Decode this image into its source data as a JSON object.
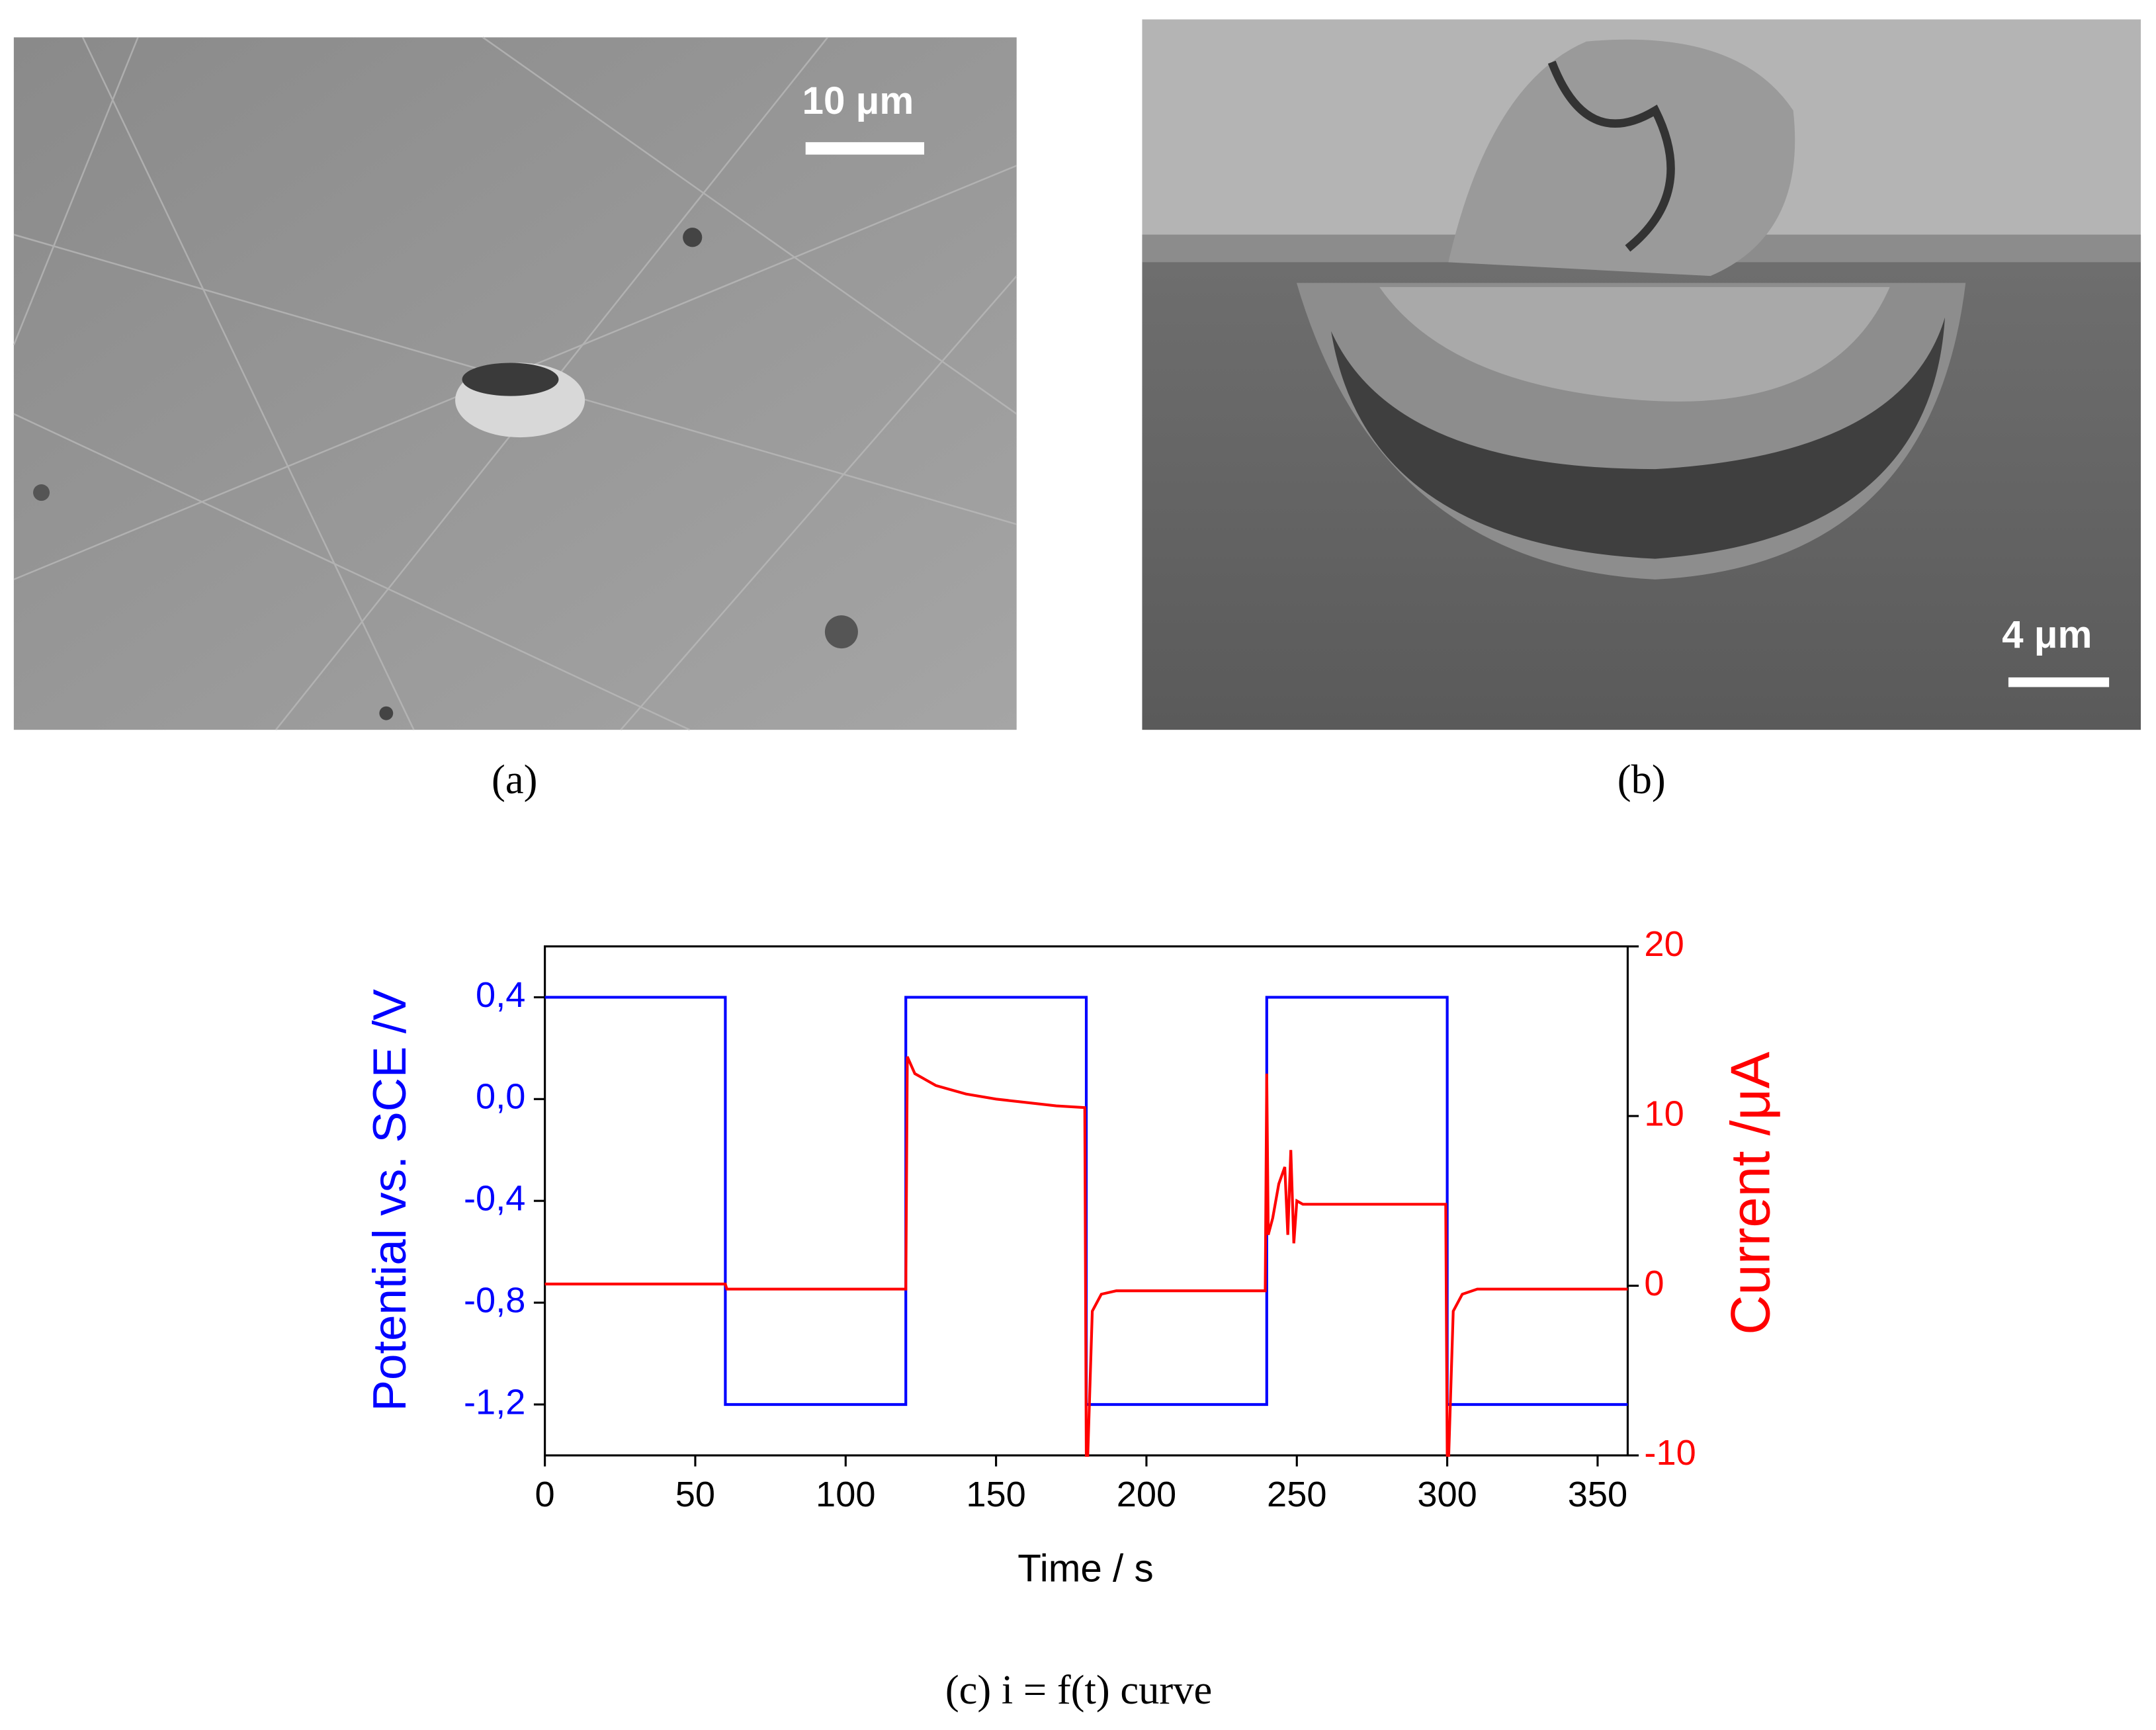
{
  "panels": [
    {
      "caption": "(a)",
      "scale_bar": "10 μm"
    },
    {
      "caption": "(b)",
      "scale_bar": "4 μm"
    }
  ],
  "chart_data": {
    "type": "line",
    "caption": "(c) i = f(t) curve",
    "x_label": "Time / s",
    "y_label": "Potential vs. SCE /V",
    "y2_label": "Current /μA",
    "xlim": [
      0,
      360
    ],
    "xticks": [
      0,
      50,
      100,
      150,
      200,
      250,
      300,
      350
    ],
    "ylim": [
      -1.4,
      0.6
    ],
    "yticks": [
      {
        "value": 0.4,
        "label": "0,4"
      },
      {
        "value": 0,
        "label": "0,0"
      },
      {
        "value": -0.4,
        "label": "-0,4"
      },
      {
        "value": -0.8,
        "label": "-0,8"
      },
      {
        "value": -1.2,
        "label": "-1,2"
      }
    ],
    "y2lim": [
      -10,
      20
    ],
    "y2ticks": [
      -10,
      0,
      10,
      20
    ],
    "series": [
      {
        "name": "Potential",
        "color": "#0000ff",
        "x": [
          0,
          60,
          60,
          120,
          120,
          180,
          180,
          240,
          240,
          300,
          300,
          360
        ],
        "values": [
          0.4,
          0.4,
          -1.2,
          -1.2,
          0.4,
          0.4,
          -1.2,
          -1.2,
          0.4,
          0.4,
          -1.2,
          -1.2
        ]
      },
      {
        "name": "Current",
        "color": "#ff0000",
        "axis": "y2",
        "x": [
          0,
          60,
          60.5,
          120,
          120.5,
          123,
          130,
          140,
          150,
          160,
          170,
          179.5,
          180,
          180.5,
          182,
          185,
          190,
          200,
          239.5,
          240,
          240.5,
          242,
          244,
          246,
          247,
          248,
          249,
          250,
          252,
          255,
          270,
          299.5,
          300,
          300.5,
          302,
          305,
          310,
          330,
          360
        ],
        "values": [
          0.1,
          0.1,
          -0.2,
          -0.2,
          13.5,
          12.5,
          11.8,
          11.3,
          11,
          10.8,
          10.6,
          10.5,
          -10,
          -10,
          -1.5,
          -0.5,
          -0.3,
          -0.3,
          -0.3,
          12.5,
          3,
          4,
          6,
          7,
          3,
          8,
          2.5,
          5,
          4.8,
          4.8,
          4.8,
          4.8,
          -10,
          -10,
          -1.5,
          -0.5,
          -0.2,
          -0.2,
          -0.2
        ]
      }
    ]
  }
}
